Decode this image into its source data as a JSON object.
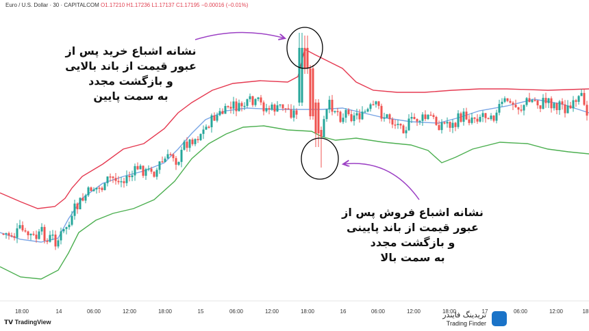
{
  "chart_data": {
    "type": "candlestick",
    "header": {
      "symbol": "Euro / U.S. Dollar · 30 · CAPITALCOM",
      "open": "O1.17210",
      "high": "H1.17236",
      "low": "L1.17137",
      "close": "C1.17195",
      "change": "−0.00016 (−0.01%)"
    },
    "x_tick_labels": [
      "18:00",
      "14",
      "06:00",
      "12:00",
      "18:00",
      "15",
      "06:00",
      "12:00",
      "18:00",
      "16",
      "06:00",
      "12:00",
      "18:00",
      "17",
      "06:00",
      "12:00",
      "18:"
    ],
    "overlays": [
      "Bollinger upper band",
      "Bollinger middle band",
      "Bollinger lower band"
    ],
    "colors": {
      "up": "#26a69a",
      "down": "#ef5350",
      "upper_band": "#e53950",
      "middle_band": "#7aa6e6",
      "lower_band": "#4caf50"
    },
    "grid": false
  },
  "annotations": {
    "top_note": [
      "نشانه اشباع خرید پس از",
      "عبور قیمت از باند بالایی",
      "و بازگشت مجدد",
      "به سمت پایین"
    ],
    "bottom_note": [
      "نشانه اشباع فروش پس از",
      "عبور قیمت از باند پایینی",
      "و بازگشت مجدد",
      "به سمت بالا"
    ]
  },
  "footer": {
    "tradingview": "TradingView",
    "brand_fa": "تریدینگ فایندر",
    "brand_en": "Trading Finder"
  }
}
